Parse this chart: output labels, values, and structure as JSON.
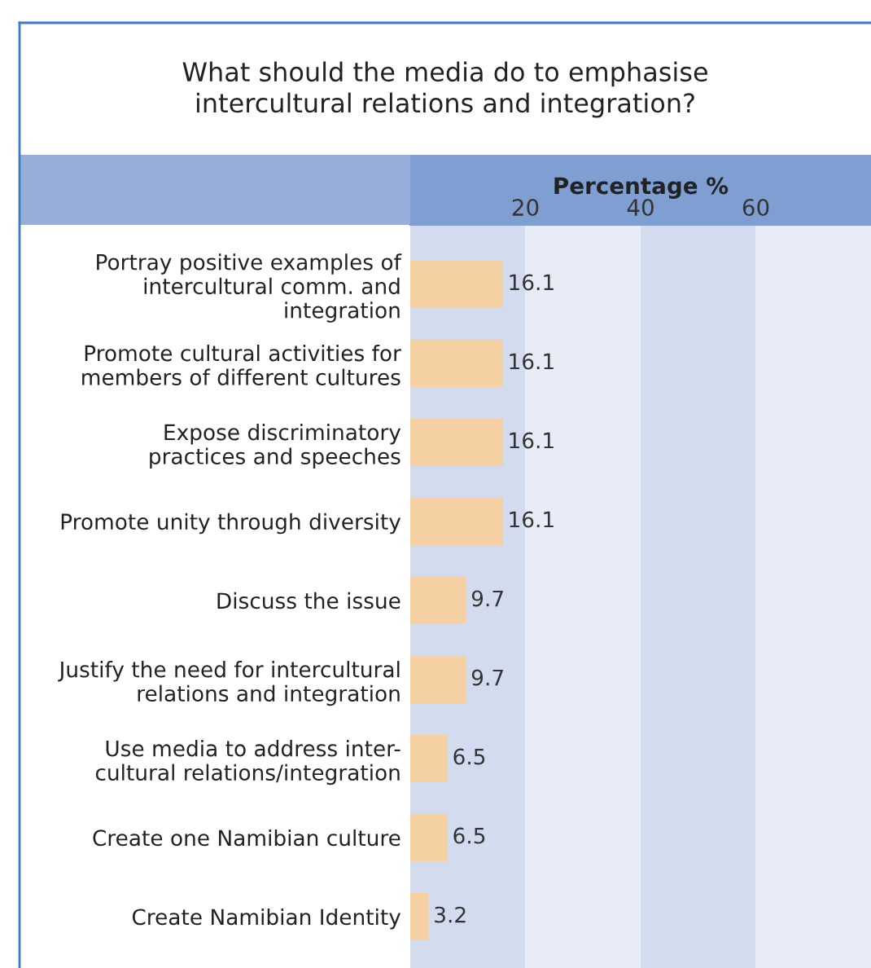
{
  "chart_data": {
    "type": "bar",
    "orientation": "horizontal",
    "title": "What should the media do to emphasise\nintercultural relations and integration?",
    "xlabel": "Percentage %",
    "categories": [
      "Portray positive examples of\nintercultural comm. and\nintegration",
      "Promote cultural activities for\nmembers of different cultures",
      "Expose discriminatory\npractices and speeches",
      "Promote unity through diversity",
      "Discuss the issue",
      "Justify the need for intercultural\nrelations and integration",
      "Use media to address inter-\ncultural relations/integration",
      "Create one Namibian culture",
      "Create Namibian Identity"
    ],
    "values": [
      16.1,
      16.1,
      16.1,
      16.1,
      9.7,
      9.7,
      6.5,
      6.5,
      3.2
    ],
    "color": "#f5d0a2",
    "data_labels": true,
    "xlim": [
      0,
      80
    ],
    "xticks": [
      20,
      40,
      60
    ],
    "grid": false,
    "legend": false,
    "bands": [
      {
        "axis": "x",
        "from": 0,
        "to": 20,
        "color": "#d3dcef"
      },
      {
        "axis": "x",
        "from": 20,
        "to": 40,
        "color": "#e8ecf7"
      },
      {
        "axis": "x",
        "from": 40,
        "to": 60,
        "color": "#d3dcef"
      },
      {
        "axis": "x",
        "from": 60,
        "to": 80,
        "color": "#e8ecf7"
      }
    ]
  }
}
